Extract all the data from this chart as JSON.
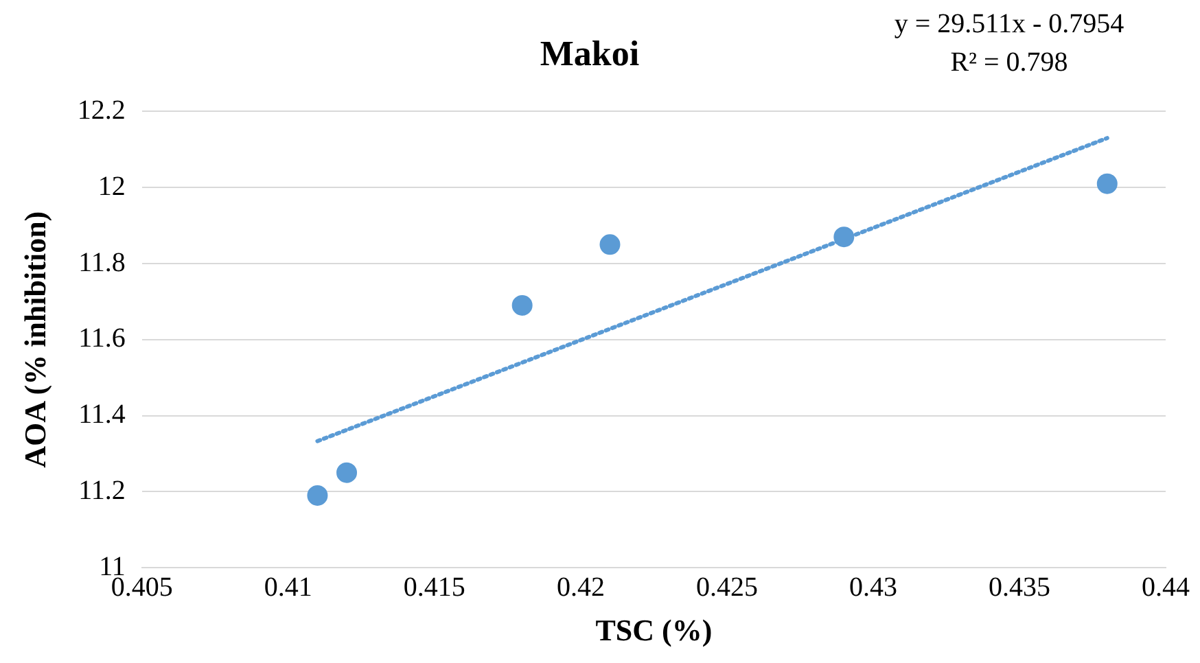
{
  "chart_data": {
    "type": "scatter",
    "title": "Makoi",
    "xlabel": "TSC (%)",
    "ylabel": "AOA (% inhibition)",
    "annotations": [
      "y = 29.511x - 0.7954",
      "R² = 0.798"
    ],
    "x": [
      0.411,
      0.412,
      0.418,
      0.421,
      0.429,
      0.438
    ],
    "series": [
      {
        "color": "#5b9bd5",
        "values": [
          11.19,
          11.25,
          11.69,
          11.85,
          11.87,
          12.01
        ],
        "marker": "circle"
      },
      {
        "type": "line",
        "color": "#5b9bd5",
        "x": [
          0.411,
          0.438
        ],
        "values": [
          11.333,
          12.13
        ],
        "line_style": "dotted",
        "marker": "none"
      }
    ],
    "xlim": [
      0.405,
      0.44
    ],
    "xticks": [
      0.405,
      0.41,
      0.415,
      0.42,
      0.425,
      0.43,
      0.435,
      0.44
    ],
    "ylim": [
      11,
      12.2
    ],
    "yticks": [
      11,
      11.2,
      11.4,
      11.6,
      11.8,
      12,
      12.2
    ],
    "grid": "y",
    "legend": false
  }
}
